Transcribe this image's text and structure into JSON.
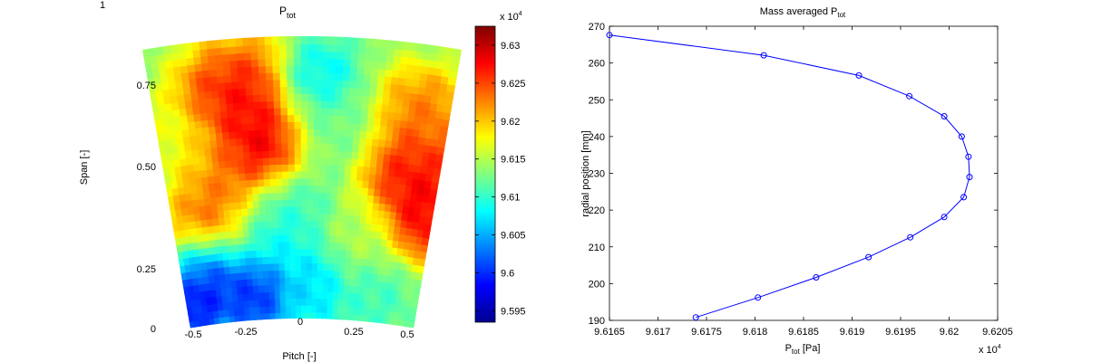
{
  "figure_number": "1",
  "chart_data": [
    {
      "type": "heatmap",
      "title": "P",
      "title_sub": "tot",
      "xlabel": "Pitch [-]",
      "ylabel": "Span [-]",
      "x_ticks": [
        "-0.5",
        "-0.25",
        "0",
        "0.25",
        "0.5"
      ],
      "y_ticks": [
        "0",
        "0.25",
        "0.50",
        "0.75"
      ],
      "y_tick_values": [
        0,
        0.25,
        0.5,
        0.75
      ],
      "colormap": "jet",
      "colorbar": {
        "multiplier_prefix": "x 10",
        "multiplier_exp": "4",
        "ticks": [
          "9.595",
          "9.6",
          "9.605",
          "9.61",
          "9.615",
          "9.62",
          "9.625",
          "9.63"
        ],
        "tick_values": [
          9.595,
          9.6,
          9.605,
          9.61,
          9.615,
          9.62,
          9.625,
          9.63
        ],
        "range": [
          9.5935,
          9.6325
        ]
      },
      "hotspots": [
        {
          "x": -0.2,
          "y": 0.78,
          "v": 9.629,
          "s": 0.11
        },
        {
          "x": -0.15,
          "y": 0.6,
          "v": 9.631,
          "s": 0.09
        },
        {
          "x": -0.3,
          "y": 0.55,
          "v": 9.622,
          "s": 0.08
        },
        {
          "x": -0.3,
          "y": 0.38,
          "v": 9.626,
          "s": 0.1
        },
        {
          "x": -0.42,
          "y": 0.65,
          "v": 9.617,
          "s": 0.08
        },
        {
          "x": 0.4,
          "y": 0.55,
          "v": 9.629,
          "s": 0.1
        },
        {
          "x": 0.45,
          "y": 0.4,
          "v": 9.63,
          "s": 0.08
        },
        {
          "x": 0.4,
          "y": 0.75,
          "v": 9.624,
          "s": 0.09
        },
        {
          "x": 0.12,
          "y": 0.7,
          "v": 9.612,
          "s": 0.1
        },
        {
          "x": 0.05,
          "y": 0.85,
          "v": 9.606,
          "s": 0.07
        },
        {
          "x": -0.05,
          "y": 0.4,
          "v": 9.61,
          "s": 0.09
        },
        {
          "x": -0.15,
          "y": 0.3,
          "v": 9.606,
          "s": 0.09
        },
        {
          "x": -0.35,
          "y": 0.18,
          "v": 9.598,
          "s": 0.08
        },
        {
          "x": -0.2,
          "y": 0.1,
          "v": 9.598,
          "s": 0.08
        },
        {
          "x": -0.45,
          "y": 0.07,
          "v": 9.597,
          "s": 0.06
        },
        {
          "x": 0.05,
          "y": 0.12,
          "v": 9.606,
          "s": 0.08
        },
        {
          "x": 0.3,
          "y": 0.1,
          "v": 9.61,
          "s": 0.08
        },
        {
          "x": 0.25,
          "y": 0.3,
          "v": 9.615,
          "s": 0.09
        }
      ]
    },
    {
      "type": "line",
      "title": "Mass averaged P",
      "title_sub": "tot",
      "xlabel": "P",
      "xlabel_sub": "tot",
      "xlabel_unit": " [Pa]",
      "ylabel": "radial position [mm]",
      "x_multiplier_prefix": "x 10",
      "x_multiplier_exp": "4",
      "xlim": [
        9.6165,
        9.6205
      ],
      "ylim": [
        190,
        270
      ],
      "x_ticks": [
        "9.6165",
        "9.617",
        "9.6175",
        "9.618",
        "9.6185",
        "9.619",
        "9.6195",
        "9.62",
        "9.6205"
      ],
      "x_tick_values": [
        9.6165,
        9.617,
        9.6175,
        9.618,
        9.6185,
        9.619,
        9.6195,
        9.62,
        9.6205
      ],
      "y_ticks": [
        "190",
        "200",
        "210",
        "220",
        "230",
        "240",
        "250",
        "260",
        "270"
      ],
      "y_tick_values": [
        190,
        200,
        210,
        220,
        230,
        240,
        250,
        260,
        270
      ],
      "line_color": "#0000ff",
      "marker": "circle",
      "points": [
        {
          "x": 9.61739,
          "y": 190.8
        },
        {
          "x": 9.61803,
          "y": 196.2
        },
        {
          "x": 9.61863,
          "y": 201.7
        },
        {
          "x": 9.61917,
          "y": 207.2
        },
        {
          "x": 9.6196,
          "y": 212.6
        },
        {
          "x": 9.61995,
          "y": 218.1
        },
        {
          "x": 9.62015,
          "y": 223.5
        },
        {
          "x": 9.62021,
          "y": 229.0
        },
        {
          "x": 9.6202,
          "y": 234.5
        },
        {
          "x": 9.62013,
          "y": 240.0
        },
        {
          "x": 9.61995,
          "y": 245.5
        },
        {
          "x": 9.61959,
          "y": 251.0
        },
        {
          "x": 9.61907,
          "y": 256.6
        },
        {
          "x": 9.61809,
          "y": 262.1
        },
        {
          "x": 9.6165,
          "y": 267.6
        }
      ]
    }
  ]
}
